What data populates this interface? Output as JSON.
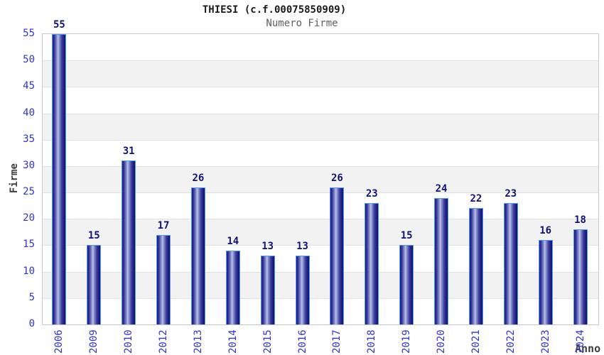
{
  "chart_data": {
    "type": "bar",
    "title": "THIESI (c.f.00075850909)",
    "subtitle": "Numero Firme",
    "xlabel": "Anno",
    "ylabel": "Firme",
    "categories": [
      "2006",
      "2009",
      "2010",
      "2012",
      "2013",
      "2014",
      "2015",
      "2016",
      "2017",
      "2018",
      "2019",
      "2020",
      "2021",
      "2022",
      "2023",
      "2024"
    ],
    "values": [
      55,
      15,
      31,
      17,
      26,
      14,
      13,
      13,
      26,
      23,
      15,
      24,
      22,
      23,
      16,
      18
    ],
    "ylim": [
      0,
      55
    ],
    "ytick_step": 5,
    "yticks": [
      0,
      5,
      10,
      15,
      20,
      25,
      30,
      35,
      40,
      45,
      50,
      55
    ],
    "grid": "horizontal-bands-alternating",
    "legend_position": "none",
    "colors": {
      "bar_dark": "#1c1c80",
      "bar_mid": "#8b93cc",
      "bar_light": "#bcc1e8",
      "bar_outline": "#4e9cf2",
      "value_label": "#121272",
      "tick_label": "#3333cc",
      "axis_label": "#3d3d3d",
      "title_color": "#1a1a1a",
      "subtitle_color": "#606060",
      "band_gray": "#f2f2f2",
      "band_white": "#ffffff",
      "grid_line": "#e2e2e2",
      "plot_border": "#c9c9c9"
    }
  }
}
